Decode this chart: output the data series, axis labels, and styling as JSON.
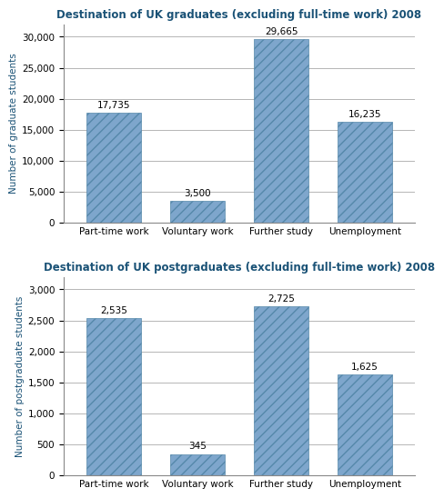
{
  "grad_title": "Destination of UK graduates (excluding full-time work) 2008",
  "postgrad_title": "Destination of UK postgraduates (excluding full-time work) 2008",
  "categories": [
    "Part-time work",
    "Voluntary work",
    "Further study",
    "Unemployment"
  ],
  "grad_values": [
    17735,
    3500,
    29665,
    16235
  ],
  "postgrad_values": [
    2535,
    345,
    2725,
    1625
  ],
  "grad_labels": [
    "17,735",
    "3,500",
    "29,665",
    "16,235"
  ],
  "postgrad_labels": [
    "2,535",
    "345",
    "2,725",
    "1,625"
  ],
  "bar_color": "#7EA6CC",
  "grad_ylabel": "Number of graduate students",
  "postgrad_ylabel": "Number of postgraduate students",
  "grad_ylim": [
    0,
    32000
  ],
  "postgrad_ylim": [
    0,
    3200
  ],
  "grad_yticks": [
    0,
    5000,
    10000,
    15000,
    20000,
    25000,
    30000
  ],
  "postgrad_yticks": [
    0,
    500,
    1000,
    1500,
    2000,
    2500,
    3000
  ],
  "title_color": "#1A5276",
  "ylabel_color": "#1A5276",
  "title_fontsize": 8.5,
  "label_fontsize": 7.5,
  "tick_fontsize": 7.5,
  "ylabel_fontsize": 7.5,
  "bar_width": 0.65,
  "hatch": "///"
}
